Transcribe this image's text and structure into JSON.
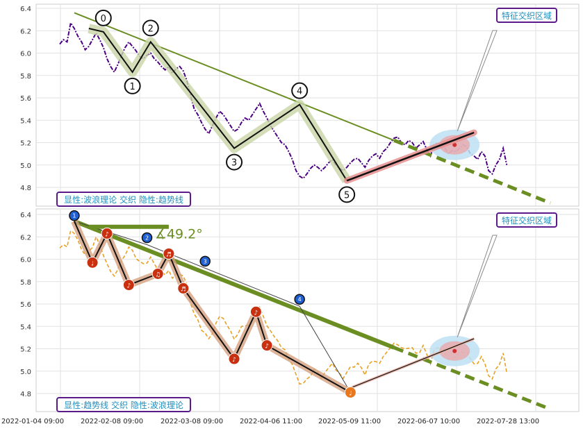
{
  "chart_data": [
    {
      "type": "line",
      "panel": "top",
      "y_ticks": [
        "6.4",
        "6.2",
        "6.0",
        "5.8",
        "5.6",
        "5.4",
        "5.2",
        "5.0",
        "4.8"
      ],
      "ylim": [
        4.7,
        6.42
      ],
      "grid": true,
      "price_color": "#4b0082",
      "price_series": [
        6.08,
        6.12,
        6.1,
        6.27,
        6.22,
        6.15,
        6.1,
        6.03,
        6.06,
        6.12,
        6.18,
        6.12,
        6.05,
        5.95,
        5.88,
        5.83,
        5.9,
        5.98,
        6.05,
        6.1,
        6.06,
        6.02,
        5.97,
        5.95,
        5.98,
        6.0,
        5.95,
        5.92,
        5.88,
        5.85,
        5.88,
        5.82,
        5.86,
        5.88,
        5.84,
        5.75,
        5.62,
        5.5,
        5.45,
        5.38,
        5.32,
        5.28,
        5.35,
        5.42,
        5.48,
        5.45,
        5.4,
        5.35,
        5.3,
        5.32,
        5.38,
        5.42,
        5.4,
        5.45,
        5.5,
        5.55,
        5.48,
        5.42,
        5.35,
        5.3,
        5.25,
        5.2,
        5.18,
        5.12,
        5.05,
        4.95,
        4.9,
        4.88,
        4.92,
        4.97,
        5.0,
        4.98,
        4.95,
        4.98,
        5.02,
        5.05,
        5.0,
        4.97,
        4.95,
        4.98,
        5.02,
        5.05,
        5.06,
        5.02,
        4.98,
        5.04,
        5.08,
        5.1,
        5.06,
        5.12,
        5.15,
        5.2,
        5.24,
        5.25,
        5.2,
        5.18,
        5.22,
        5.2,
        5.15,
        5.18,
        5.21,
        5.14,
        5.08,
        5.18,
        5.2,
        5.17,
        5.15,
        5.1,
        5.13,
        5.12,
        5.15,
        5.18,
        5.16,
        5.1,
        5.08,
        5.05,
        5.12,
        5.08,
        4.95,
        4.92,
        5.0,
        5.05,
        5.15,
        5.0
      ],
      "wave_points": [
        {
          "label": "0",
          "x_index": 12,
          "y": 6.19
        },
        {
          "label": "1",
          "x_index": 20,
          "y": 5.83
        },
        {
          "label": "2",
          "x_index": 25,
          "y": 6.1
        },
        {
          "label": "3",
          "x_index": 48,
          "y": 5.15
        },
        {
          "label": "4",
          "x_index": 66,
          "y": 5.54
        },
        {
          "label": "5",
          "x_index": 79,
          "y": 4.86
        }
      ],
      "trend_line": {
        "start": {
          "x_index": 4,
          "y": 6.36
        },
        "end_solid": {
          "x_index": 92,
          "y": 5.22
        },
        "end": {
          "x_index": 135,
          "y": 4.66
        }
      },
      "channel_line": {
        "start": {
          "x_index": 79,
          "y": 4.86
        },
        "end": {
          "x_index": 114,
          "y": 5.29
        }
      },
      "legend": "显性:波浪理论 交织 隐性:趋势线",
      "callout": "特征交织区域",
      "trend_color": "#6b8e23",
      "legend_color": "#1f8fbf",
      "legend_border": "#5a1a8a"
    },
    {
      "type": "line",
      "panel": "bottom",
      "y_ticks": [
        "6.4",
        "6.2",
        "6.0",
        "5.8",
        "5.6",
        "5.4",
        "5.2",
        "5.0",
        "4.8"
      ],
      "ylim": [
        4.7,
        6.42
      ],
      "grid": true,
      "price_color": "#e8a020",
      "wave_points": [
        {
          "label": "1",
          "x_index": 4,
          "y": 6.34
        },
        {
          "label": "2",
          "x_index": 24,
          "y": 6.13
        },
        {
          "label": "3",
          "x_index": 40,
          "y": 5.92
        },
        {
          "label": "4",
          "x_index": 66,
          "y": 5.58
        },
        {
          "label": "5",
          "x_index": 80,
          "y": 4.81
        }
      ],
      "note_points": [
        {
          "label": "♩",
          "x_index": 9,
          "y": 5.97
        },
        {
          "label": "♪",
          "x_index": 13,
          "y": 6.23
        },
        {
          "label": "♪",
          "x_index": 19,
          "y": 5.77
        },
        {
          "label": "♫",
          "x_index": 27,
          "y": 5.87
        },
        {
          "label": "♬",
          "x_index": 30,
          "y": 6.05
        },
        {
          "label": "♬",
          "x_index": 34,
          "y": 5.74
        },
        {
          "label": "♪",
          "x_index": 48,
          "y": 5.11
        },
        {
          "label": "♪",
          "x_index": 54,
          "y": 5.53
        },
        {
          "label": "♪",
          "x_index": 57,
          "y": 5.23
        },
        {
          "label": "♩",
          "x_index": 80,
          "y": 4.81
        }
      ],
      "trend_line": {
        "start": {
          "x_index": 4,
          "y": 6.34
        },
        "end_solid": {
          "x_index": 92,
          "y": 5.21
        },
        "end": {
          "x_index": 135,
          "y": 4.66
        }
      },
      "flat_line": {
        "start": {
          "x_index": 8,
          "y": 6.29
        },
        "end": {
          "x_index": 30,
          "y": 6.29
        }
      },
      "angle_label": "∡49.2°",
      "channel_line": {
        "start": {
          "x_index": 80,
          "y": 4.85
        },
        "end": {
          "x_index": 114,
          "y": 5.29
        }
      },
      "legend": "显性:趋势线 交织 隐性:波浪理论",
      "callout": "特征交织区域",
      "trend_color": "#6b8e23",
      "legend_color": "#1f8fbf",
      "legend_border": "#5a1a8a"
    }
  ],
  "x_axis": {
    "ticks": [
      "2022-01-04 09:00",
      "2022-02-08 09:00",
      "2022-03-08 09:00",
      "2022-04-06 11:00",
      "2022-05-09 11:00",
      "2022-06-07 10:00",
      "2022-07-28 13:00"
    ]
  }
}
